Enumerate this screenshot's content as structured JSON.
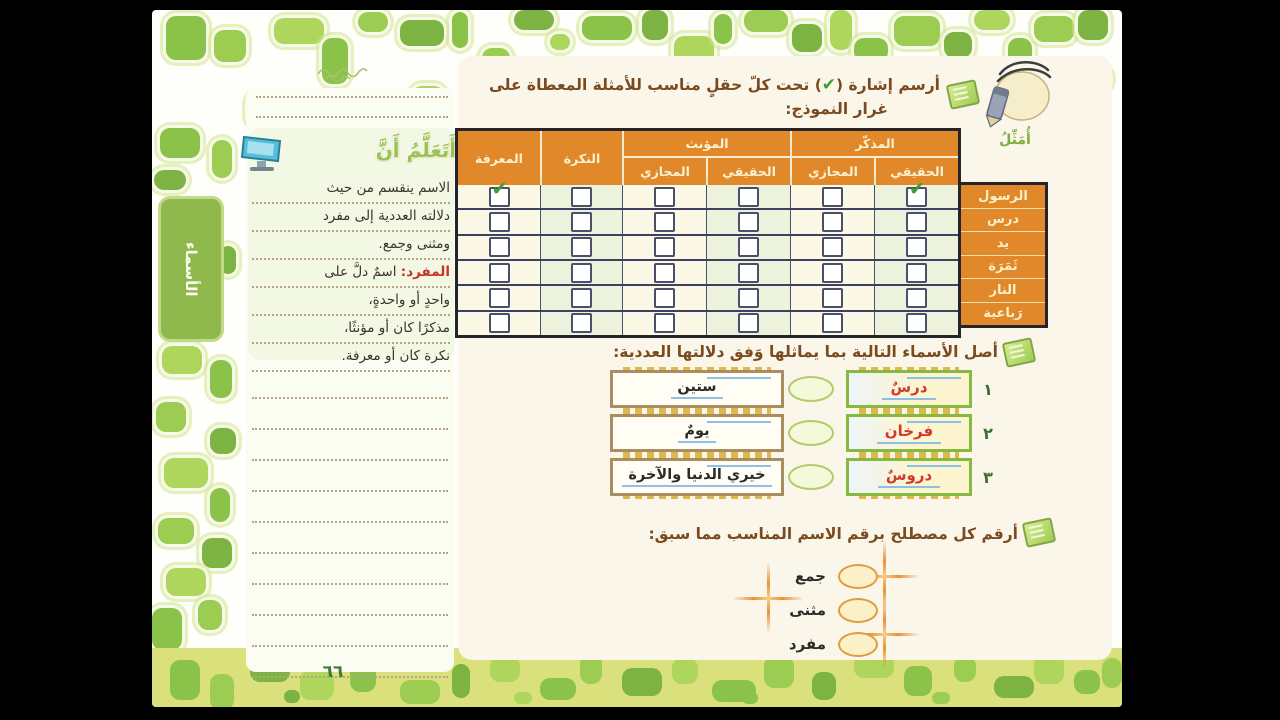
{
  "page": {
    "number": "٦٦",
    "side_tab": "الأسماء"
  },
  "character": {
    "label": "أُمَثِّلُ"
  },
  "learn": {
    "heading": "أَتَعَلَّمُ أَنَّ",
    "lines_before": [
      "الاسم ينقسم من حيث",
      "دلالته العددية إلى مفرد",
      "ومثنى وجمع."
    ],
    "term": "المفرد:",
    "term_rest": " اسمٌ دلَّ على",
    "lines_after": [
      "واحدٍ أو واحدةٍ،",
      "مذكرًا كان أو مؤنثًا،",
      "نكرة كان أو معرفة."
    ]
  },
  "ex1": {
    "line1_pre": "أرسم إشارة (",
    "check_symbol": "✔",
    "line1_post": ") تحت كلّ حقلٍ مناسب للأمثلة المعطاة على",
    "line2": "غرار النموذج:"
  },
  "table": {
    "headers": {
      "definite": "المعرفة",
      "indefinite": "النكرة",
      "feminine": "المؤنث",
      "masculine": "المذكّر",
      "real": "الحقيقي",
      "figurative": "المجازي"
    },
    "rows": [
      {
        "label": "الرسول",
        "checks": [
          1,
          0,
          0,
          0,
          0,
          1
        ]
      },
      {
        "label": "درس",
        "checks": [
          0,
          0,
          0,
          0,
          0,
          0
        ]
      },
      {
        "label": "يد",
        "checks": [
          0,
          0,
          0,
          0,
          0,
          0
        ]
      },
      {
        "label": "ثَمَرَة",
        "checks": [
          0,
          0,
          0,
          0,
          0,
          0
        ]
      },
      {
        "label": "النار",
        "checks": [
          0,
          0,
          0,
          0,
          0,
          0
        ]
      },
      {
        "label": "رَباعية",
        "checks": [
          0,
          0,
          0,
          0,
          0,
          0
        ]
      }
    ]
  },
  "ex2": {
    "instruction": "أصل الأسماء التالية بما يماثلها وَفق دلالتها العددية:",
    "rows": [
      {
        "num": "١",
        "name": "درسٌ",
        "match": "ستين"
      },
      {
        "num": "٢",
        "name": "فرخان",
        "match": "يومٌ"
      },
      {
        "num": "٣",
        "name": "دروسٌ",
        "match": "خيري الدنيا والآخرة"
      }
    ]
  },
  "ex3": {
    "instruction": "أرقم كل مصطلح برقم الاسم المناسب مما سبق:",
    "items": [
      "جمع",
      "مثنى",
      "مفرد"
    ]
  },
  "colors": {
    "accent_orange": "#e0882a",
    "check_green": "#3f9b35",
    "band_green": "#d9e07c",
    "tab_green": "#8fb94c",
    "text_brown": "#7b4a1e",
    "term_red": "#c43427"
  }
}
